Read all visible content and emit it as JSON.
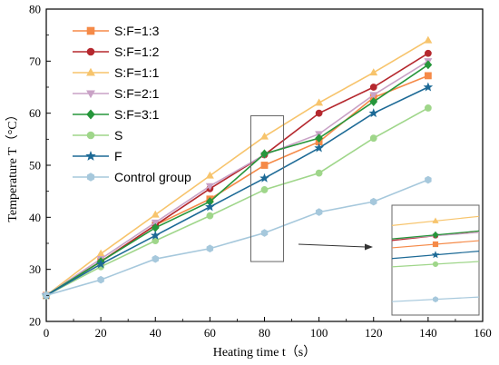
{
  "chart_data": {
    "type": "line",
    "xlabel": "Heating time t（s）",
    "ylabel": "Temperature T（°C）",
    "xlim": [
      0,
      160
    ],
    "ylim": [
      20,
      80
    ],
    "x_ticks": [
      0,
      20,
      40,
      60,
      80,
      100,
      120,
      140,
      160
    ],
    "y_ticks": [
      20,
      30,
      40,
      50,
      60,
      70,
      80
    ],
    "legend_position": "top-left",
    "x": [
      0,
      20,
      40,
      60,
      80,
      100,
      120,
      140
    ],
    "series": [
      {
        "name": "S:F=1:3",
        "color": "#f58a48",
        "marker": "square",
        "values": [
          25,
          31.5,
          38.5,
          43.5,
          50,
          54.5,
          63,
          67.2
        ]
      },
      {
        "name": "S:F=1:2",
        "color": "#b5282e",
        "marker": "circle",
        "values": [
          25,
          31.5,
          38.5,
          45.5,
          52,
          60,
          65,
          71.5
        ]
      },
      {
        "name": "S:F=1:1",
        "color": "#f7c46c",
        "marker": "triangle-up",
        "values": [
          25,
          33,
          40.5,
          48,
          55.5,
          62,
          67.8,
          74
        ]
      },
      {
        "name": "S:F=2:1",
        "color": "#c9a2c6",
        "marker": "triangle-down",
        "values": [
          25,
          32,
          39,
          46,
          52,
          56,
          63.5,
          70
        ]
      },
      {
        "name": "S:F=3:1",
        "color": "#26963b",
        "marker": "diamond",
        "values": [
          25,
          31.5,
          38,
          43,
          52.2,
          55.2,
          62.2,
          69.3
        ]
      },
      {
        "name": "S",
        "color": "#9fd68a",
        "marker": "circle",
        "values": [
          25,
          30.5,
          35.5,
          40.3,
          45.3,
          48.5,
          55.2,
          61
        ]
      },
      {
        "name": "F",
        "color": "#1d6a96",
        "marker": "star",
        "values": [
          25,
          31,
          36.5,
          42,
          47.5,
          53.3,
          60,
          65
        ]
      },
      {
        "name": "Control group",
        "color": "#a6c8dc",
        "marker": "hexagon",
        "values": [
          25,
          28,
          32,
          34,
          37,
          41,
          43,
          47.2
        ]
      }
    ],
    "inset": {
      "type": "zoomed-view",
      "x_range": [
        75,
        87
      ],
      "y_range": [
        31.5,
        59.5
      ],
      "position": "lower-right"
    }
  }
}
